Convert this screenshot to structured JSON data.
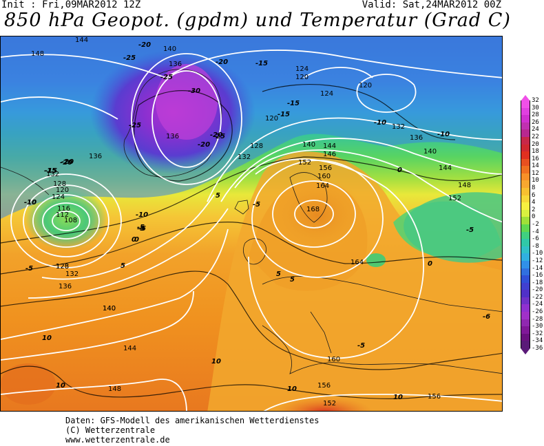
{
  "header": {
    "init": "Init : Fri,09MAR2012 12Z",
    "valid": "Valid: Sat,24MAR2012 00Z",
    "title": "850 hPa Geopot. (gpdm) und Temperatur (Grad C)"
  },
  "legend": {
    "ticks": [
      "32",
      "30",
      "28",
      "26",
      "24",
      "22",
      "20",
      "18",
      "16",
      "14",
      "12",
      "10",
      "8",
      "6",
      "4",
      "2",
      "0",
      "-2",
      "-4",
      "-6",
      "-8",
      "-10",
      "-12",
      "-14",
      "-16",
      "-18",
      "-20",
      "-22",
      "-24",
      "-26",
      "-28",
      "-30",
      "-32",
      "-34",
      "-36"
    ],
    "colors": [
      "#f050e8",
      "#e040e0",
      "#d030d0",
      "#c030b0",
      "#b82890",
      "#c82848",
      "#d02830",
      "#e03020",
      "#e85020",
      "#f07020",
      "#f89028",
      "#f8a830",
      "#f8c030",
      "#f8d838",
      "#f8f040",
      "#d8f040",
      "#a0e038",
      "#60d850",
      "#40d080",
      "#30c8a8",
      "#30c0c8",
      "#30b0e0",
      "#3090e8",
      "#3070e0",
      "#3050d8",
      "#4040d0",
      "#5030c8",
      "#7030c8",
      "#9030d0",
      "#a030c8",
      "#9028b0",
      "#801898",
      "#6a1080",
      "#5a1a78"
    ]
  },
  "map": {
    "geopotential_labels": [
      "148",
      "144",
      "140",
      "136",
      "128",
      "124",
      "120",
      "116",
      "112",
      "108",
      "132",
      "136",
      "140",
      "128",
      "124",
      "120",
      "124",
      "120",
      "132",
      "136",
      "140",
      "144",
      "148",
      "152",
      "120",
      "128",
      "132",
      "136",
      "140",
      "144",
      "146",
      "152",
      "156",
      "160",
      "164",
      "168",
      "164",
      "160",
      "156",
      "156",
      "152",
      "148",
      "144",
      "140",
      "136",
      "132",
      "128"
    ],
    "temperature_labels": [
      "-20",
      "-25",
      "-30",
      "-25",
      "-20",
      "-25",
      "-15",
      "-20",
      "-15",
      "-20",
      "-10",
      "-15",
      "-10",
      "-5",
      "0",
      "5",
      "-5",
      "-10",
      "-15",
      "-20",
      "-25",
      "-10",
      "-5",
      "0",
      "-5",
      "0",
      "5",
      "5",
      "5",
      "-5",
      "10",
      "10",
      "10",
      "10",
      "10",
      "-5",
      "-6",
      "0",
      "-5",
      "-20",
      "-15",
      "-10"
    ]
  },
  "footer": {
    "line1": "Daten: GFS-Modell des amerikanischen Wetterdienstes",
    "line2": "(C) Wetterzentrale",
    "line3": "www.wetterzentrale.de"
  }
}
